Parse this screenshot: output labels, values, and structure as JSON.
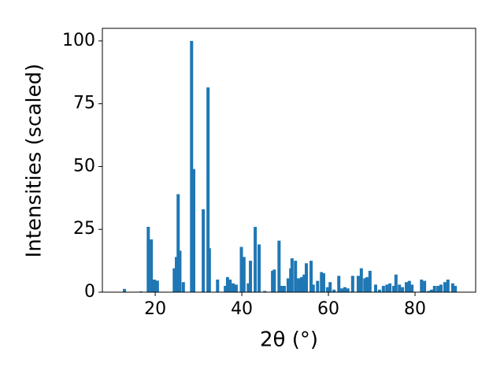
{
  "chart_data": {
    "type": "bar",
    "xlabel": "2θ (°)",
    "ylabel": "Intensities (scaled)",
    "color": "#1f77b4",
    "xlim": [
      7.8,
      94.0
    ],
    "ylim": [
      0,
      105
    ],
    "xticks": [
      20,
      40,
      60,
      80
    ],
    "yticks": [
      0,
      25,
      50,
      75,
      100
    ],
    "x": [
      12.9,
      16.7,
      18.4,
      19.1,
      19.8,
      20.5,
      24.4,
      24.9,
      25.3,
      25.7,
      26.5,
      28.4,
      28.9,
      31.1,
      32.2,
      32.5,
      34.4,
      36.2,
      36.7,
      37.3,
      38.0,
      38.7,
      39.9,
      40.5,
      41.5,
      42.0,
      43.1,
      44.0,
      45.3,
      47.1,
      47.5,
      48.6,
      49.1,
      49.8,
      50.7,
      51.3,
      51.6,
      52.4,
      53.1,
      53.8,
      54.4,
      54.9,
      56.0,
      56.5,
      57.5,
      58.4,
      58.9,
      59.8,
      60.4,
      61.3,
      62.4,
      63.1,
      63.8,
      64.5,
      65.6,
      66.9,
      67.6,
      68.4,
      68.9,
      69.6,
      70.9,
      71.8,
      72.7,
      73.5,
      74.2,
      75.1,
      75.6,
      76.4,
      77.1,
      78.0,
      78.7,
      79.3,
      81.5,
      82.2,
      83.1,
      83.8,
      84.5,
      85.3,
      86.0,
      86.9,
      87.6,
      88.7,
      89.3
    ],
    "values": [
      1.3,
      0.3,
      26,
      21,
      5,
      4.6,
      9.5,
      14,
      39,
      16.5,
      4,
      100,
      49,
      33,
      81.5,
      17.5,
      5,
      2.5,
      6,
      5,
      3.5,
      3,
      18,
      14,
      3.5,
      12.5,
      26,
      19,
      0.5,
      8.5,
      9,
      20.5,
      2.5,
      2.5,
      5.5,
      9.5,
      13.5,
      12.5,
      5.5,
      6,
      7,
      11.5,
      12.5,
      3,
      4.5,
      8,
      7.5,
      2,
      4,
      1,
      6.5,
      1.5,
      2,
      1.5,
      6.5,
      6.5,
      9.5,
      5.5,
      6,
      8.5,
      3,
      1,
      2.5,
      3,
      3.5,
      2.5,
      7,
      3,
      2,
      4,
      4.5,
      3,
      5,
      4.5,
      0.5,
      1,
      2.5,
      2.5,
      3,
      4,
      5,
      3.5,
      2.5
    ]
  }
}
